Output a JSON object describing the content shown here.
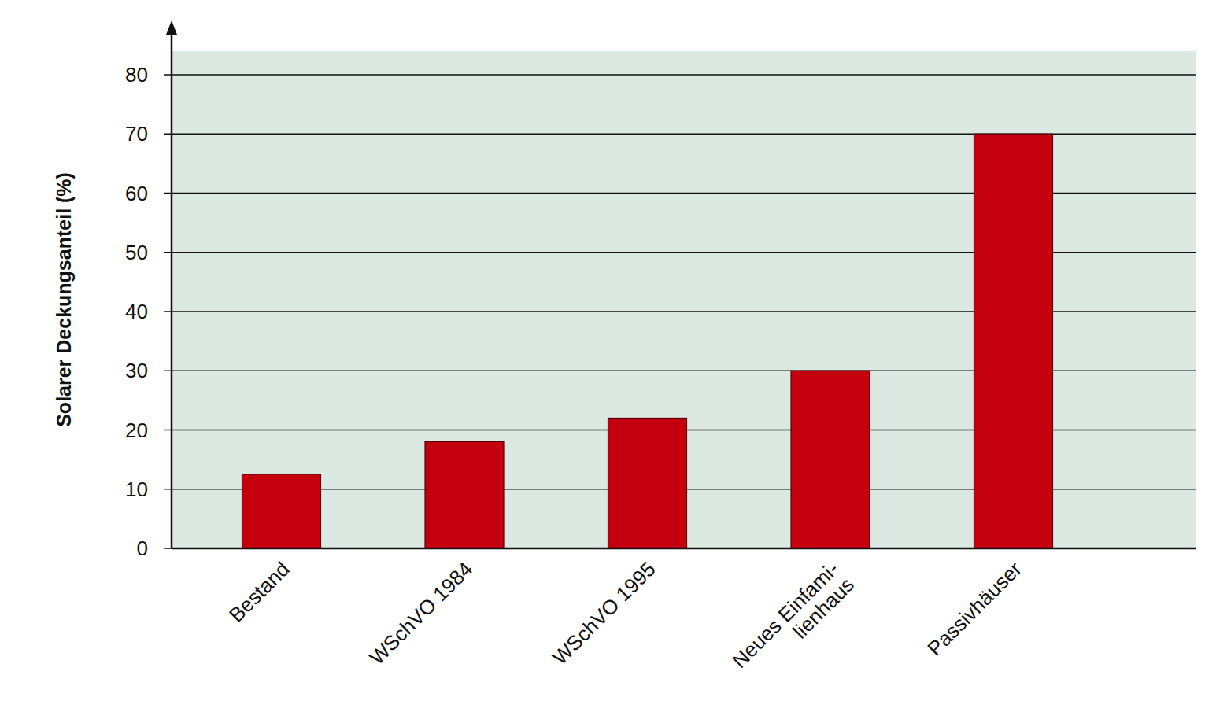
{
  "chart_data": {
    "type": "bar",
    "y_label": "Solarer Deckungsanteil (%)",
    "categories": [
      "Bestand",
      "WSchVO 1984",
      "WSchVO 1995",
      "Neues Einfami-\nlienhaus",
      "Passivhäuser"
    ],
    "values": [
      12.5,
      18,
      22,
      30,
      70
    ],
    "color": "#c4000f",
    "ylim": [
      0,
      84
    ],
    "yticks": [
      0,
      10,
      20,
      30,
      40,
      50,
      60,
      70,
      80
    ],
    "grid": true
  }
}
